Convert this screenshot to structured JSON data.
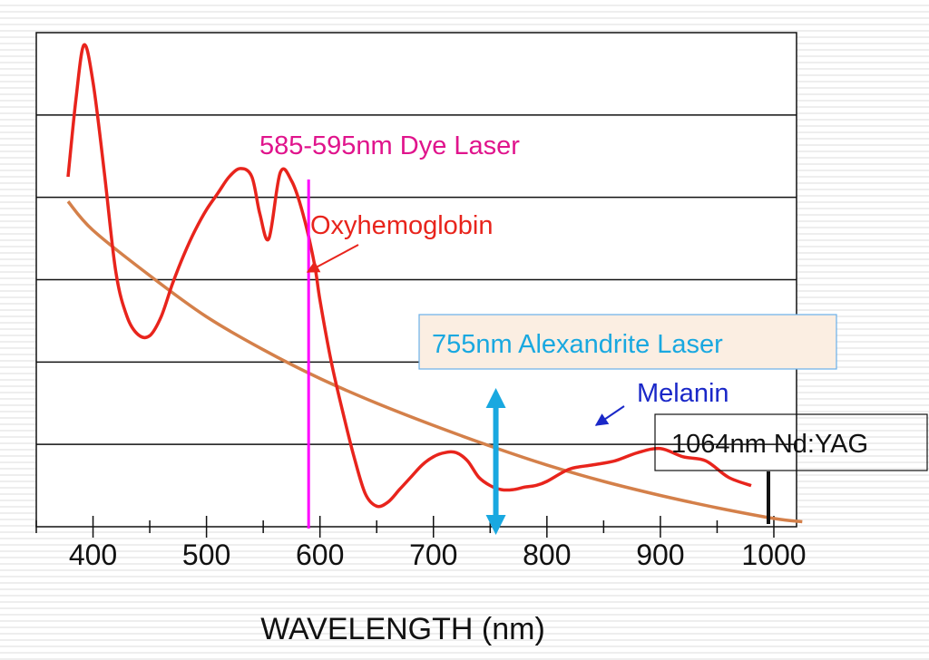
{
  "chart_data": {
    "type": "line",
    "xlabel": "WAVELENGTH (nm)",
    "ylabel": "",
    "xlim": [
      350,
      1020
    ],
    "ylim": [
      0,
      6
    ],
    "grid": true,
    "x_ticks": [
      400,
      500,
      600,
      700,
      800,
      900,
      1000
    ],
    "series": [
      {
        "name": "Oxyhemoglobin",
        "color": "#e8241c",
        "x": [
          378,
          385,
          392,
          400,
          410,
          420,
          430,
          440,
          450,
          460,
          470,
          480,
          490,
          500,
          510,
          520,
          530,
          540,
          547,
          555,
          565,
          575,
          585,
          595,
          600,
          610,
          620,
          630,
          640,
          650,
          660,
          670,
          680,
          690,
          700,
          710,
          720,
          730,
          740,
          750,
          760,
          770,
          780,
          790,
          800,
          820,
          840,
          860,
          880,
          900,
          920,
          940,
          960,
          980
        ],
        "y": [
          4.25,
          5.2,
          5.85,
          5.4,
          4.3,
          3.1,
          2.55,
          2.33,
          2.32,
          2.55,
          2.95,
          3.3,
          3.6,
          3.85,
          4.05,
          4.25,
          4.35,
          4.25,
          3.8,
          3.5,
          4.3,
          4.2,
          3.8,
          3.2,
          2.75,
          2.0,
          1.4,
          0.85,
          0.4,
          0.25,
          0.3,
          0.45,
          0.6,
          0.75,
          0.85,
          0.9,
          0.9,
          0.8,
          0.6,
          0.5,
          0.45,
          0.45,
          0.48,
          0.5,
          0.55,
          0.7,
          0.75,
          0.8,
          0.9,
          0.95,
          0.85,
          0.8,
          0.6,
          0.5
        ]
      },
      {
        "name": "Melanin",
        "color": "#d4804a",
        "x": [
          378,
          400,
          450,
          500,
          550,
          600,
          650,
          700,
          750,
          800,
          850,
          900,
          950,
          1000,
          1025
        ],
        "y": [
          3.95,
          3.6,
          3.05,
          2.55,
          2.15,
          1.8,
          1.5,
          1.23,
          0.98,
          0.75,
          0.55,
          0.38,
          0.23,
          0.1,
          0.06
        ]
      }
    ],
    "annotations": {
      "dye": {
        "text": "585-595nm  Dye Laser",
        "color": "#e0148c",
        "wavelength": 590
      },
      "oxy_label": "Oxyhemoglobin",
      "alex": {
        "text": "755nm Alexandrite Laser",
        "color": "#19a8e0",
        "wavelength": 755
      },
      "melanin_label": "Melanin",
      "yag": {
        "text": "1064nm Nd:YAG"
      }
    }
  }
}
